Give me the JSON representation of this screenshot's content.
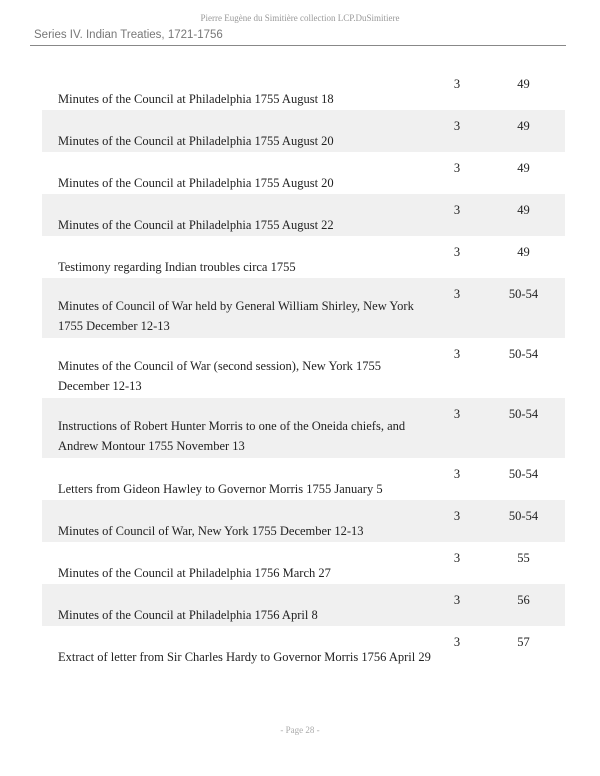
{
  "header": {
    "collection": "Pierre Eugène du Simitière collection  LCP.DuSimitiere",
    "series": "Series IV. Indian Treaties, 1721-1756"
  },
  "rows": [
    {
      "title": "Minutes of the Council at Philadelphia 1755 August 18",
      "box": "3",
      "pages": "49"
    },
    {
      "title": "Minutes of the Council at Philadelphia 1755 August 20",
      "box": "3",
      "pages": "49"
    },
    {
      "title": "Minutes of the Council at Philadelphia 1755 August 20",
      "box": "3",
      "pages": "49"
    },
    {
      "title": "Minutes of the Council at Philadelphia 1755 August 22",
      "box": "3",
      "pages": "49"
    },
    {
      "title": "Testimony regarding Indian troubles circa 1755",
      "box": "3",
      "pages": "49"
    },
    {
      "title": "Minutes of Council of War held by General William Shirley, New York 1755 December 12-13",
      "box": "3",
      "pages": "50-54"
    },
    {
      "title": "Minutes of the Council of War (second session), New York 1755 December 12-13",
      "box": "3",
      "pages": "50-54"
    },
    {
      "title": "Instructions of Robert Hunter Morris to one of the Oneida chiefs, and Andrew Montour 1755 November 13",
      "box": "3",
      "pages": "50-54"
    },
    {
      "title": "Letters from Gideon Hawley to Governor Morris 1755 January 5",
      "box": "3",
      "pages": "50-54"
    },
    {
      "title": "Minutes of Council of War, New York 1755 December 12-13",
      "box": "3",
      "pages": "50-54"
    },
    {
      "title": "Minutes of the Council at Philadelphia 1756 March 27",
      "box": "3",
      "pages": "55"
    },
    {
      "title": "Minutes of the Council at Philadelphia 1756 April 8",
      "box": "3",
      "pages": "56"
    },
    {
      "title": "Extract of letter from Sir Charles Hardy to Governor Morris 1756 April 29",
      "box": "3",
      "pages": "57"
    }
  ],
  "footer": {
    "page": "- Page 28 -"
  }
}
